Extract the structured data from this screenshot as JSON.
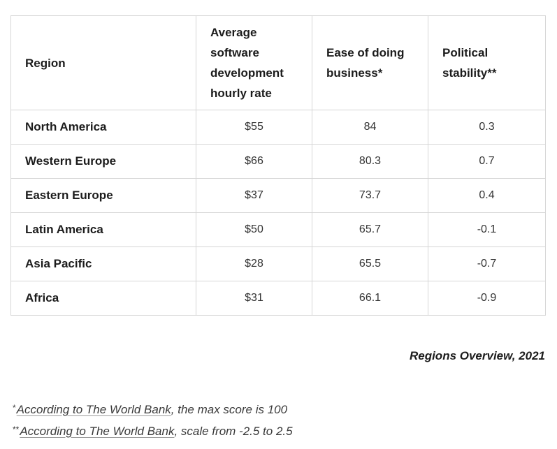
{
  "table": {
    "headers": {
      "region": "Region",
      "rate": "Average software development hourly rate",
      "ease": "Ease of doing business*",
      "political": "Political stability**"
    },
    "rows": [
      {
        "region": "North America",
        "rate": "$55",
        "ease": "84",
        "political": "0.3"
      },
      {
        "region": "Western Europe",
        "rate": "$66",
        "ease": "80.3",
        "political": "0.7"
      },
      {
        "region": "Eastern Europe",
        "rate": "$37",
        "ease": "73.7",
        "political": "0.4"
      },
      {
        "region": "Latin America",
        "rate": "$50",
        "ease": "65.7",
        "political": "-0.1"
      },
      {
        "region": "Asia Pacific",
        "rate": "$28",
        "ease": "65.5",
        "political": "-0.7"
      },
      {
        "region": "Africa",
        "rate": "$31",
        "ease": "66.1",
        "political": "-0.9"
      }
    ]
  },
  "caption": "Regions Overview, 2021",
  "footnotes": [
    {
      "marker": "*",
      "link_text": "According to The World Bank",
      "rest": ", the max score is 100"
    },
    {
      "marker": "**",
      "link_text": "According to The World Bank",
      "rest": ", scale from -2.5 to 2.5"
    }
  ]
}
